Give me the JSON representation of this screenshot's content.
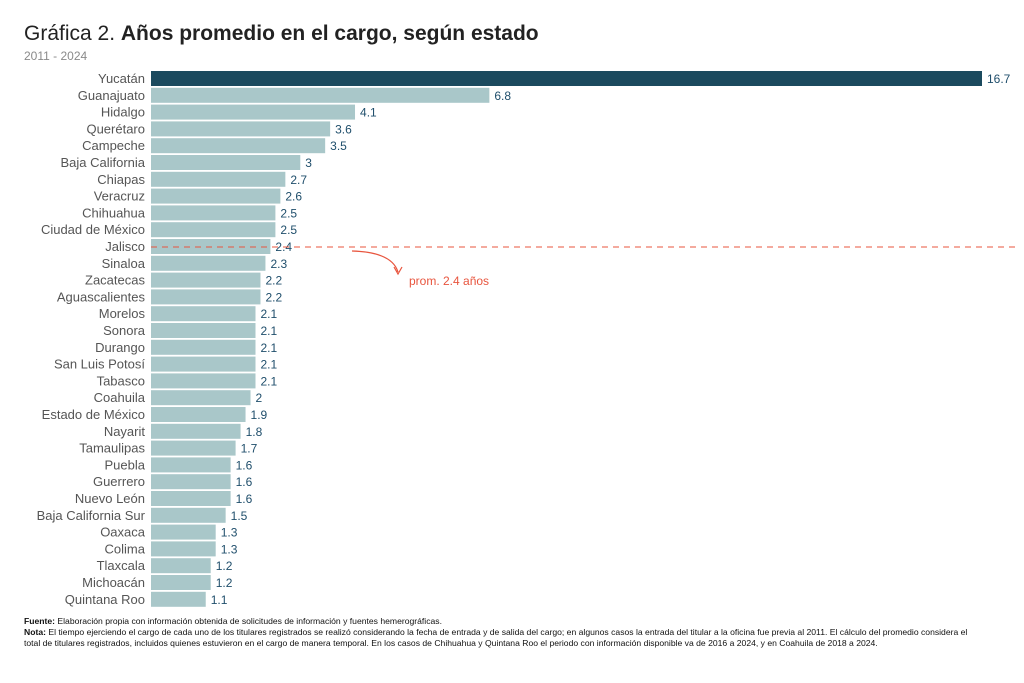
{
  "header": {
    "title_prefix": "Gráfica 2.",
    "title_main": "Años promedio en el cargo, según estado",
    "subtitle": "2011 - 2024"
  },
  "chart_data": {
    "type": "bar",
    "orientation": "horizontal",
    "title": "Gráfica 2. Años promedio en el cargo, según estado",
    "subtitle": "2011 - 2024",
    "xlim": [
      0,
      16.7
    ],
    "grid": false,
    "categories": [
      "Yucatán",
      "Guanajuato",
      "Hidalgo",
      "Querétaro",
      "Campeche",
      "Baja California",
      "Chiapas",
      "Veracruz",
      "Chihuahua",
      "Ciudad de México",
      "Jalisco",
      "Sinaloa",
      "Zacatecas",
      "Aguascalientes",
      "Morelos",
      "Sonora",
      "Durango",
      "San Luis Potosí",
      "Tabasco",
      "Coahuila",
      "Estado de México",
      "Nayarit",
      "Tamaulipas",
      "Puebla",
      "Guerrero",
      "Nuevo León",
      "Baja California Sur",
      "Oaxaca",
      "Colima",
      "Tlaxcala",
      "Michoacán",
      "Quintana Roo"
    ],
    "values": [
      16.7,
      6.8,
      4.1,
      3.6,
      3.5,
      3,
      2.7,
      2.6,
      2.5,
      2.5,
      2.4,
      2.3,
      2.2,
      2.2,
      2.1,
      2.1,
      2.1,
      2.1,
      2.1,
      2,
      1.9,
      1.8,
      1.7,
      1.6,
      1.6,
      1.6,
      1.5,
      1.3,
      1.3,
      1.2,
      1.2,
      1.1
    ],
    "highlight_category": "Yucatán",
    "colors": {
      "bar": "#a9c7c9",
      "highlight": "#1b4a5e",
      "value_text": "#1f4e6b",
      "average": "#e8553e"
    },
    "average": {
      "value": 2.4,
      "label": "prom. 2.4 años"
    }
  },
  "notes": {
    "source_label": "Fuente:",
    "source_text": " Elaboración propia con información obtenida de solicitudes de información y fuentes hemerográficas.",
    "note_label": "Nota:",
    "note_text": " El tiempo ejerciendo el cargo de cada uno de los titulares registrados se realizó considerando la fecha de entrada y de salida del cargo; en algunos casos la entrada del titular a la oficina fue previa al 2011. El cálculo del promedio considera el total de titulares registrados, incluidos quienes estuvieron en el cargo de manera temporal. En los casos de Chihuahua y Quintana Roo el periodo con información disponible va de 2016 a 2024, y en Coahuila de 2018 a 2024."
  }
}
